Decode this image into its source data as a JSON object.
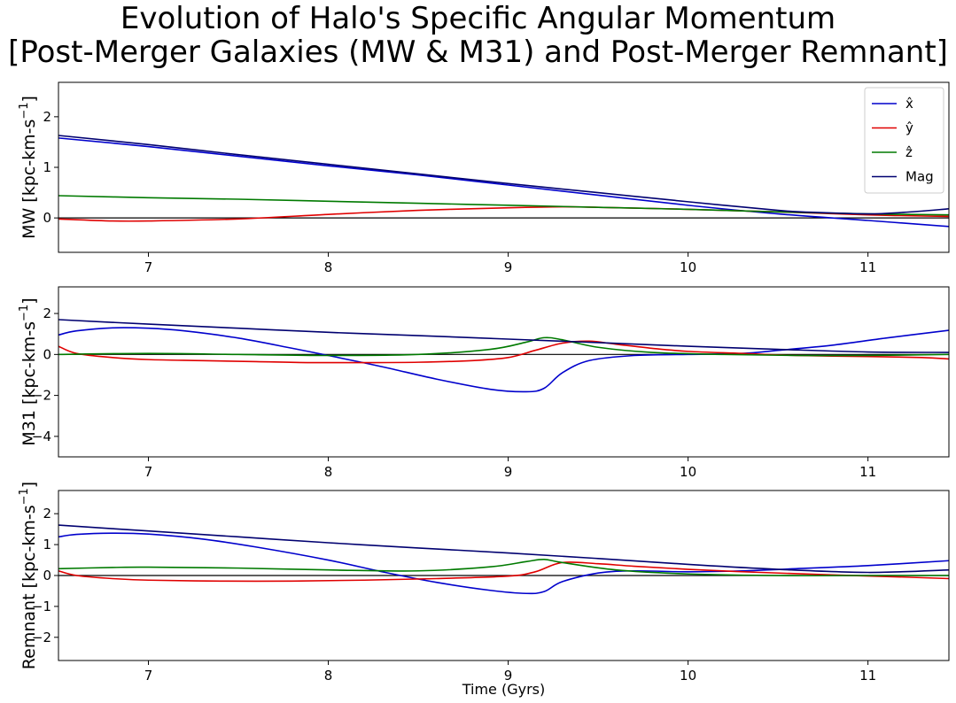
{
  "title": {
    "line1": "Evolution of Halo's Specific Angular Momentum",
    "line2": "[Post-Merger Galaxies (MW & M31) and Post-Merger Remnant]"
  },
  "chart_data": [
    {
      "type": "line",
      "ylabel": "MW [kpc-km-s^-1]",
      "ylabel_main": "MW [kpc-km-s",
      "ylabel_sup": "−1",
      "ylabel_end": "]",
      "xlabel": "",
      "xlim": [
        6.5,
        11.45
      ],
      "ylim": [
        -0.68,
        2.68
      ],
      "xticks": [
        "7",
        "8",
        "9",
        "10",
        "11"
      ],
      "xtick_values": [
        7,
        8,
        9,
        10,
        11
      ],
      "yticks": [
        "0",
        "1",
        "2"
      ],
      "ytick_values": [
        0,
        1,
        2
      ],
      "zero_line": true,
      "legend": {
        "placement": "top-right",
        "entries": [
          {
            "label": "x̂",
            "color": "#0000cc"
          },
          {
            "label": "ŷ",
            "color": "#e00000"
          },
          {
            "label": "ẑ",
            "color": "#007a00"
          },
          {
            "label": "Mag",
            "color": "#000070"
          }
        ]
      },
      "series": [
        {
          "color": "#0000cc",
          "x": [
            6.5,
            7,
            7.5,
            8,
            8.5,
            9,
            9.5,
            10,
            10.5,
            11,
            11.45
          ],
          "values": [
            1.58,
            1.41,
            1.22,
            1.03,
            0.85,
            0.65,
            0.45,
            0.25,
            0.08,
            -0.05,
            -0.17
          ]
        },
        {
          "color": "#e00000",
          "x": [
            6.5,
            6.8,
            7,
            7.5,
            8,
            8.5,
            9,
            9.3,
            9.5,
            10,
            10.5,
            11,
            11.45
          ],
          "values": [
            -0.02,
            -0.06,
            -0.06,
            -0.02,
            0.07,
            0.15,
            0.2,
            0.22,
            0.21,
            0.17,
            0.12,
            0.06,
            0.03
          ]
        },
        {
          "color": "#007a00",
          "x": [
            6.5,
            7,
            7.5,
            8,
            8.5,
            9,
            9.5,
            10,
            10.5,
            11,
            11.45
          ],
          "values": [
            0.44,
            0.4,
            0.37,
            0.33,
            0.29,
            0.25,
            0.21,
            0.17,
            0.12,
            0.08,
            0.06
          ]
        },
        {
          "color": "#000070",
          "x": [
            6.5,
            7,
            7.5,
            8,
            8.5,
            9,
            9.5,
            10,
            10.5,
            10.7,
            11,
            11.2,
            11.45
          ],
          "values": [
            1.63,
            1.45,
            1.25,
            1.06,
            0.87,
            0.68,
            0.5,
            0.32,
            0.15,
            0.11,
            0.08,
            0.11,
            0.18
          ]
        }
      ]
    },
    {
      "type": "line",
      "ylabel": "M31 [kpc-km-s^-1]",
      "ylabel_main": "M31 [kpc-km-s",
      "ylabel_sup": "−1",
      "ylabel_end": "]",
      "xlabel": "",
      "xlim": [
        6.5,
        11.45
      ],
      "ylim": [
        -5.0,
        3.3
      ],
      "xticks": [
        "7",
        "8",
        "9",
        "10",
        "11"
      ],
      "xtick_values": [
        7,
        8,
        9,
        10,
        11
      ],
      "yticks": [
        "2",
        "0",
        "−2",
        "−4"
      ],
      "ytick_values": [
        2,
        0,
        -2,
        -4
      ],
      "zero_line": true,
      "series": [
        {
          "color": "#0000cc",
          "x": [
            6.5,
            6.6,
            6.8,
            7.0,
            7.2,
            7.5,
            7.8,
            8.0,
            8.3,
            8.6,
            8.9,
            9.1,
            9.2,
            9.3,
            9.45,
            9.7,
            10.0,
            10.3,
            10.5,
            10.8,
            11.1,
            11.45
          ],
          "values": [
            0.95,
            1.15,
            1.3,
            1.28,
            1.15,
            0.8,
            0.3,
            -0.05,
            -0.6,
            -1.2,
            -1.7,
            -1.82,
            -1.65,
            -0.9,
            -0.3,
            -0.05,
            0.0,
            0.05,
            0.2,
            0.45,
            0.8,
            1.18
          ]
        },
        {
          "color": "#e00000",
          "x": [
            6.5,
            6.6,
            6.8,
            7.0,
            7.3,
            7.6,
            7.9,
            8.2,
            8.5,
            8.8,
            9.0,
            9.15,
            9.3,
            9.45,
            9.6,
            9.8,
            10.0,
            10.3,
            10.6,
            11.0,
            11.3,
            11.45
          ],
          "values": [
            0.4,
            0.05,
            -0.15,
            -0.25,
            -0.3,
            -0.35,
            -0.4,
            -0.4,
            -0.38,
            -0.3,
            -0.15,
            0.2,
            0.55,
            0.65,
            0.5,
            0.3,
            0.15,
            0.05,
            -0.05,
            -0.1,
            -0.15,
            -0.22
          ]
        },
        {
          "color": "#007a00",
          "x": [
            6.5,
            7,
            7.5,
            8,
            8.5,
            8.9,
            9.1,
            9.2,
            9.3,
            9.5,
            9.8,
            10.2,
            10.6,
            11,
            11.45
          ],
          "values": [
            0.0,
            0.05,
            0.0,
            -0.05,
            0.0,
            0.25,
            0.6,
            0.82,
            0.72,
            0.35,
            0.1,
            0.0,
            -0.05,
            -0.05,
            0.0
          ]
        },
        {
          "color": "#000070",
          "x": [
            6.5,
            7,
            7.5,
            8,
            8.5,
            9,
            9.5,
            10,
            10.5,
            11,
            11.45
          ],
          "values": [
            1.7,
            1.48,
            1.28,
            1.08,
            0.92,
            0.75,
            0.58,
            0.4,
            0.25,
            0.12,
            0.1
          ]
        }
      ]
    },
    {
      "type": "line",
      "ylabel": "Remnant [kpc-km-s^-1]",
      "ylabel_main": "Remnant [kpc-km-s",
      "ylabel_sup": "−1",
      "ylabel_end": "]",
      "xlabel": "Time (Gyrs)",
      "xlim": [
        6.5,
        11.45
      ],
      "ylim": [
        -2.75,
        2.75
      ],
      "xticks": [
        "7",
        "8",
        "9",
        "10",
        "11"
      ],
      "xtick_values": [
        7,
        8,
        9,
        10,
        11
      ],
      "yticks": [
        "2",
        "1",
        "0",
        "−1",
        "−2"
      ],
      "ytick_values": [
        2,
        1,
        0,
        -1,
        -2
      ],
      "zero_line": true,
      "series": [
        {
          "color": "#0000cc",
          "x": [
            6.5,
            6.6,
            6.8,
            7.0,
            7.3,
            7.6,
            8.0,
            8.3,
            8.6,
            8.9,
            9.1,
            9.2,
            9.3,
            9.5,
            9.7,
            10.0,
            10.3,
            10.6,
            11.0,
            11.45
          ],
          "values": [
            1.25,
            1.33,
            1.37,
            1.34,
            1.18,
            0.92,
            0.5,
            0.12,
            -0.22,
            -0.48,
            -0.58,
            -0.52,
            -0.2,
            0.08,
            0.15,
            0.12,
            0.15,
            0.22,
            0.32,
            0.48
          ]
        },
        {
          "color": "#e00000",
          "x": [
            6.5,
            6.6,
            6.8,
            7.0,
            7.4,
            7.8,
            8.2,
            8.6,
            9.0,
            9.15,
            9.3,
            9.5,
            9.7,
            10.0,
            10.4,
            10.8,
            11.2,
            11.45
          ],
          "values": [
            0.15,
            0.0,
            -0.1,
            -0.15,
            -0.18,
            -0.18,
            -0.15,
            -0.1,
            -0.02,
            0.12,
            0.42,
            0.38,
            0.3,
            0.2,
            0.1,
            0.02,
            -0.05,
            -0.1
          ]
        },
        {
          "color": "#007a00",
          "x": [
            6.5,
            6.8,
            7.0,
            7.5,
            8.0,
            8.5,
            8.9,
            9.1,
            9.2,
            9.3,
            9.6,
            10.0,
            10.5,
            11.0,
            11.45
          ],
          "values": [
            0.22,
            0.26,
            0.27,
            0.24,
            0.18,
            0.15,
            0.28,
            0.45,
            0.52,
            0.42,
            0.18,
            0.05,
            0.0,
            0.0,
            0.0
          ]
        },
        {
          "color": "#000070",
          "x": [
            6.5,
            7,
            7.5,
            8,
            8.5,
            9,
            9.5,
            10,
            10.5,
            11,
            11.45
          ],
          "values": [
            1.63,
            1.44,
            1.25,
            1.06,
            0.89,
            0.73,
            0.55,
            0.36,
            0.2,
            0.1,
            0.18
          ]
        }
      ]
    }
  ]
}
